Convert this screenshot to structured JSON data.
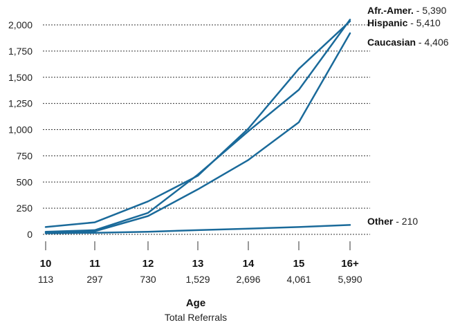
{
  "chart_data": {
    "type": "line",
    "categories": [
      "10",
      "11",
      "12",
      "13",
      "14",
      "15",
      "16+"
    ],
    "category_totals": [
      "113",
      "297",
      "730",
      "1,529",
      "2,696",
      "4,061",
      "5,990"
    ],
    "xlabel": "Age",
    "xsublabel": "Total Referrals",
    "ylim": [
      0,
      2000
    ],
    "yticks": [
      0,
      250,
      500,
      750,
      1000,
      1250,
      1500,
      1750,
      2000
    ],
    "ytick_labels": [
      "0",
      "250",
      "500",
      "750",
      "1,000",
      "1,250",
      "1,500",
      "1,750",
      "2,000"
    ],
    "grid": true,
    "line_color": "#1a6a9a",
    "series": [
      {
        "name": "Afr.-Amer.",
        "total": "5,390",
        "values": [
          25,
          40,
          205,
          570,
          985,
          1380,
          2050
        ]
      },
      {
        "name": "Hispanic",
        "total": "5,410",
        "values": [
          70,
          115,
          315,
          560,
          1010,
          1580,
          2035
        ]
      },
      {
        "name": "Caucasian",
        "total": "4,406",
        "values": [
          20,
          30,
          175,
          430,
          710,
          1070,
          1920
        ]
      },
      {
        "name": "Other",
        "total": "210",
        "values": [
          10,
          15,
          25,
          40,
          55,
          70,
          90
        ]
      }
    ]
  }
}
